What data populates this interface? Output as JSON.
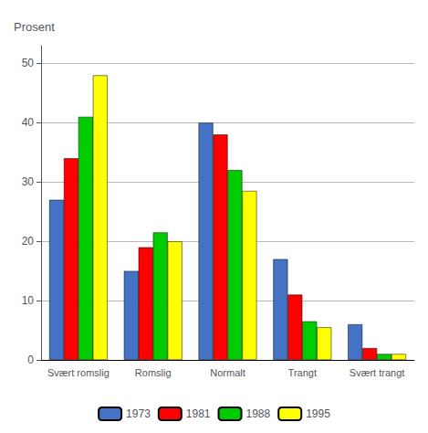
{
  "chart_data": {
    "type": "bar",
    "ylabel": "Prosent",
    "categories": [
      "Svært romslig",
      "Romslig",
      "Normalt",
      "Trangt",
      "Svært trangt"
    ],
    "series": [
      {
        "name": "1973",
        "color": "#4472C4",
        "values": [
          27,
          15,
          40,
          17,
          6
        ]
      },
      {
        "name": "1981",
        "color": "#FF0000",
        "values": [
          34,
          19,
          38,
          11,
          2
        ]
      },
      {
        "name": "1988",
        "color": "#00CC00",
        "values": [
          41,
          21.5,
          32,
          6.5,
          1
        ]
      },
      {
        "name": "1995",
        "color": "#FFFF00",
        "values": [
          48,
          20,
          28.5,
          5.5,
          1
        ]
      }
    ],
    "ylim": [
      0,
      53
    ],
    "yticks": [
      0,
      10,
      20,
      30,
      40,
      50
    ],
    "grid": true,
    "legend": "bottom"
  }
}
